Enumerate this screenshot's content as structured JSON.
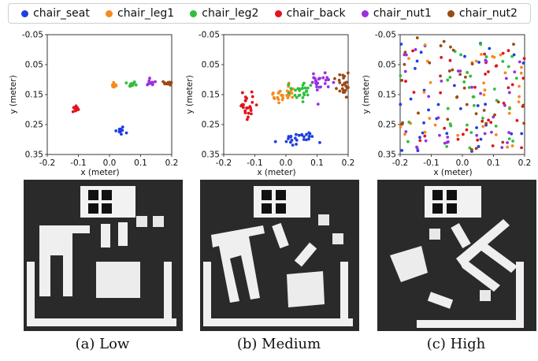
{
  "legend": {
    "items": [
      {
        "label": "chair_seat",
        "color": "#1f3fe0"
      },
      {
        "label": "chair_leg1",
        "color": "#f58a1f"
      },
      {
        "label": "chair_leg2",
        "color": "#2fbf3a"
      },
      {
        "label": "chair_back",
        "color": "#e0141e"
      },
      {
        "label": "chair_nut1",
        "color": "#9b30e0"
      },
      {
        "label": "chair_nut2",
        "color": "#9a4a14"
      }
    ]
  },
  "chart_data": [
    {
      "type": "scatter",
      "xlabel": "x (meter)",
      "ylabel": "y (meter)",
      "xlim": [
        -0.2,
        0.2
      ],
      "ylim": [
        0.35,
        -0.05
      ],
      "xticks": [
        "-0.2",
        "-0.1",
        "0.0",
        "0.1",
        "0.2"
      ],
      "yticks": [
        "-0.05",
        "0.05",
        "0.15",
        "0.25",
        "0.35"
      ],
      "noise_level": "Low",
      "series": [
        {
          "name": "chair_seat",
          "center": [
            0.03,
            0.27
          ],
          "spread": [
            0.008,
            0.006
          ]
        },
        {
          "name": "chair_leg1",
          "center": [
            0.01,
            0.12
          ],
          "spread": [
            0.008,
            0.005
          ]
        },
        {
          "name": "chair_leg2",
          "center": [
            0.07,
            0.115
          ],
          "spread": [
            0.008,
            0.005
          ]
        },
        {
          "name": "chair_back",
          "center": [
            -0.11,
            0.2
          ],
          "spread": [
            0.008,
            0.006
          ]
        },
        {
          "name": "chair_nut1",
          "center": [
            0.13,
            0.11
          ],
          "spread": [
            0.009,
            0.005
          ]
        },
        {
          "name": "chair_nut2",
          "center": [
            0.19,
            0.11
          ],
          "spread": [
            0.01,
            0.005
          ]
        }
      ]
    },
    {
      "type": "scatter",
      "xlabel": "x (meter)",
      "ylabel": "y (meter)",
      "xlim": [
        -0.2,
        0.2
      ],
      "ylim": [
        0.35,
        -0.05
      ],
      "xticks": [
        "-0.2",
        "-0.1",
        "0.0",
        "0.1",
        "0.2"
      ],
      "yticks": [
        "-0.05",
        "0.05",
        "0.15",
        "0.25",
        "0.35"
      ],
      "noise_level": "Medium",
      "series": [
        {
          "name": "chair_seat",
          "center": [
            0.03,
            0.295
          ],
          "spread": [
            0.03,
            0.012
          ]
        },
        {
          "name": "chair_leg1",
          "center": [
            -0.005,
            0.145
          ],
          "spread": [
            0.02,
            0.012
          ]
        },
        {
          "name": "chair_leg2",
          "center": [
            0.05,
            0.14
          ],
          "spread": [
            0.018,
            0.015
          ]
        },
        {
          "name": "chair_back",
          "center": [
            -0.12,
            0.19
          ],
          "spread": [
            0.018,
            0.025
          ]
        },
        {
          "name": "chair_nut1",
          "center": [
            0.11,
            0.105
          ],
          "spread": [
            0.015,
            0.022
          ]
        },
        {
          "name": "chair_nut2",
          "center": [
            0.18,
            0.12
          ],
          "spread": [
            0.015,
            0.022
          ]
        }
      ]
    },
    {
      "type": "scatter",
      "xlabel": "x (meter)",
      "ylabel": "y (meter)",
      "xlim": [
        -0.2,
        0.2
      ],
      "ylim": [
        0.35,
        -0.05
      ],
      "xticks": [
        "-0.2",
        "-0.1",
        "0.0",
        "0.1",
        "0.2"
      ],
      "yticks": [
        "-0.05",
        "0.05",
        "0.15",
        "0.25",
        "0.35"
      ],
      "noise_level": "High",
      "series": [
        {
          "name": "chair_seat",
          "center": [
            0.0,
            0.14
          ],
          "spread": [
            0.2,
            0.18
          ]
        },
        {
          "name": "chair_leg1",
          "center": [
            0.0,
            0.14
          ],
          "spread": [
            0.2,
            0.18
          ]
        },
        {
          "name": "chair_leg2",
          "center": [
            0.0,
            0.14
          ],
          "spread": [
            0.2,
            0.18
          ]
        },
        {
          "name": "chair_back",
          "center": [
            0.0,
            0.14
          ],
          "spread": [
            0.2,
            0.18
          ]
        },
        {
          "name": "chair_nut1",
          "center": [
            0.0,
            0.14
          ],
          "spread": [
            0.2,
            0.18
          ]
        },
        {
          "name": "chair_nut2",
          "center": [
            0.0,
            0.14
          ],
          "spread": [
            0.2,
            0.18
          ]
        }
      ]
    }
  ],
  "captions": [
    "(a) Low",
    "(b) Medium",
    "(c) High"
  ]
}
